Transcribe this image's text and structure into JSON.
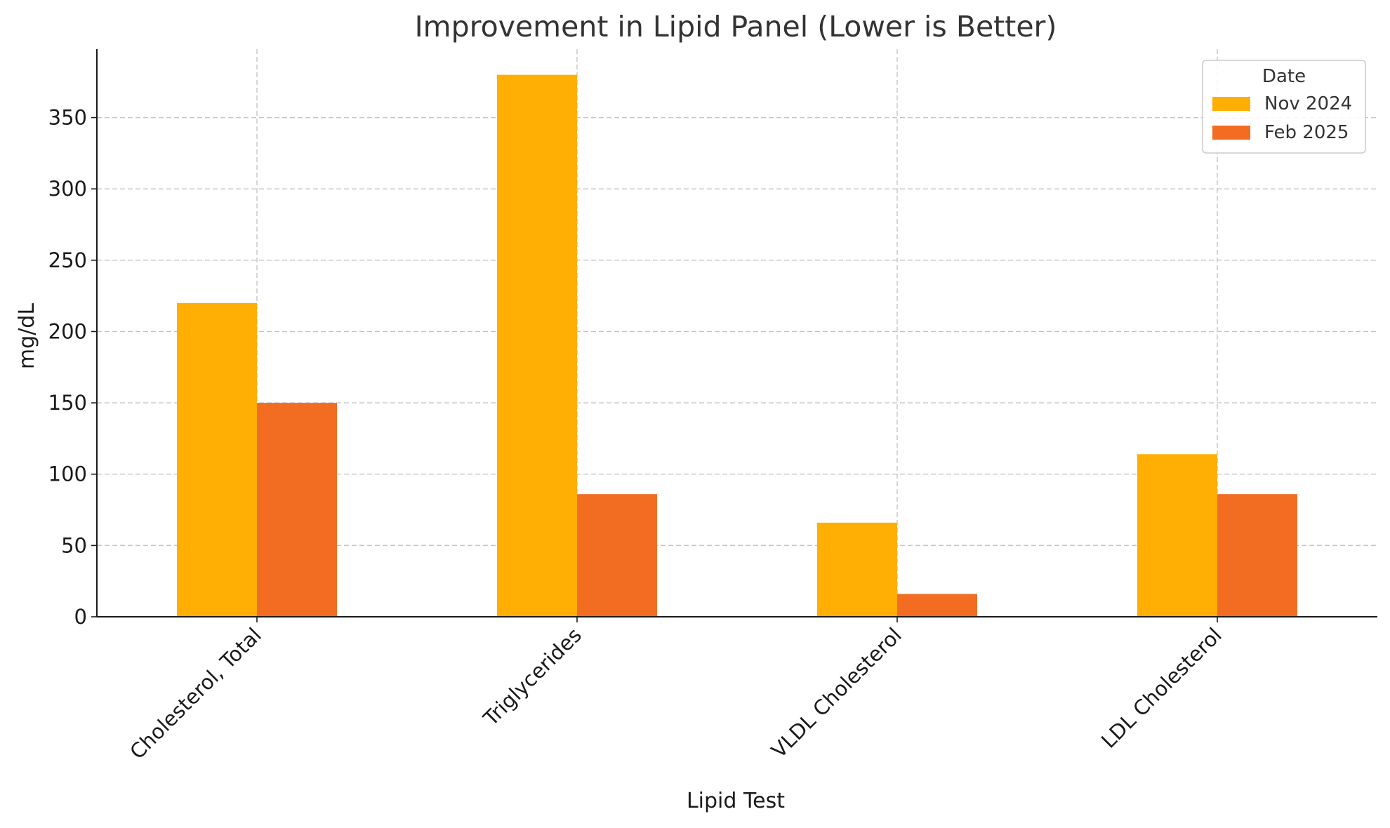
{
  "chart_data": {
    "type": "bar",
    "title": "Improvement in Lipid Panel (Lower is Better)",
    "xlabel": "Lipid Test",
    "ylabel": "mg/dL",
    "categories": [
      "Cholesterol, Total",
      "Triglycerides",
      "VLDL Cholesterol",
      "LDL Cholesterol"
    ],
    "series": [
      {
        "name": "Nov 2024",
        "values": [
          220,
          380,
          66,
          114
        ],
        "color": "#FFAE03"
      },
      {
        "name": "Feb 2025",
        "values": [
          150,
          86,
          16,
          86
        ],
        "color": "#F26C22"
      }
    ],
    "ylim": [
      0,
      398
    ],
    "yticks": [
      0,
      50,
      100,
      150,
      200,
      250,
      300,
      350
    ],
    "grid": true,
    "legend": {
      "title": "Date",
      "placement": "top-right"
    }
  }
}
